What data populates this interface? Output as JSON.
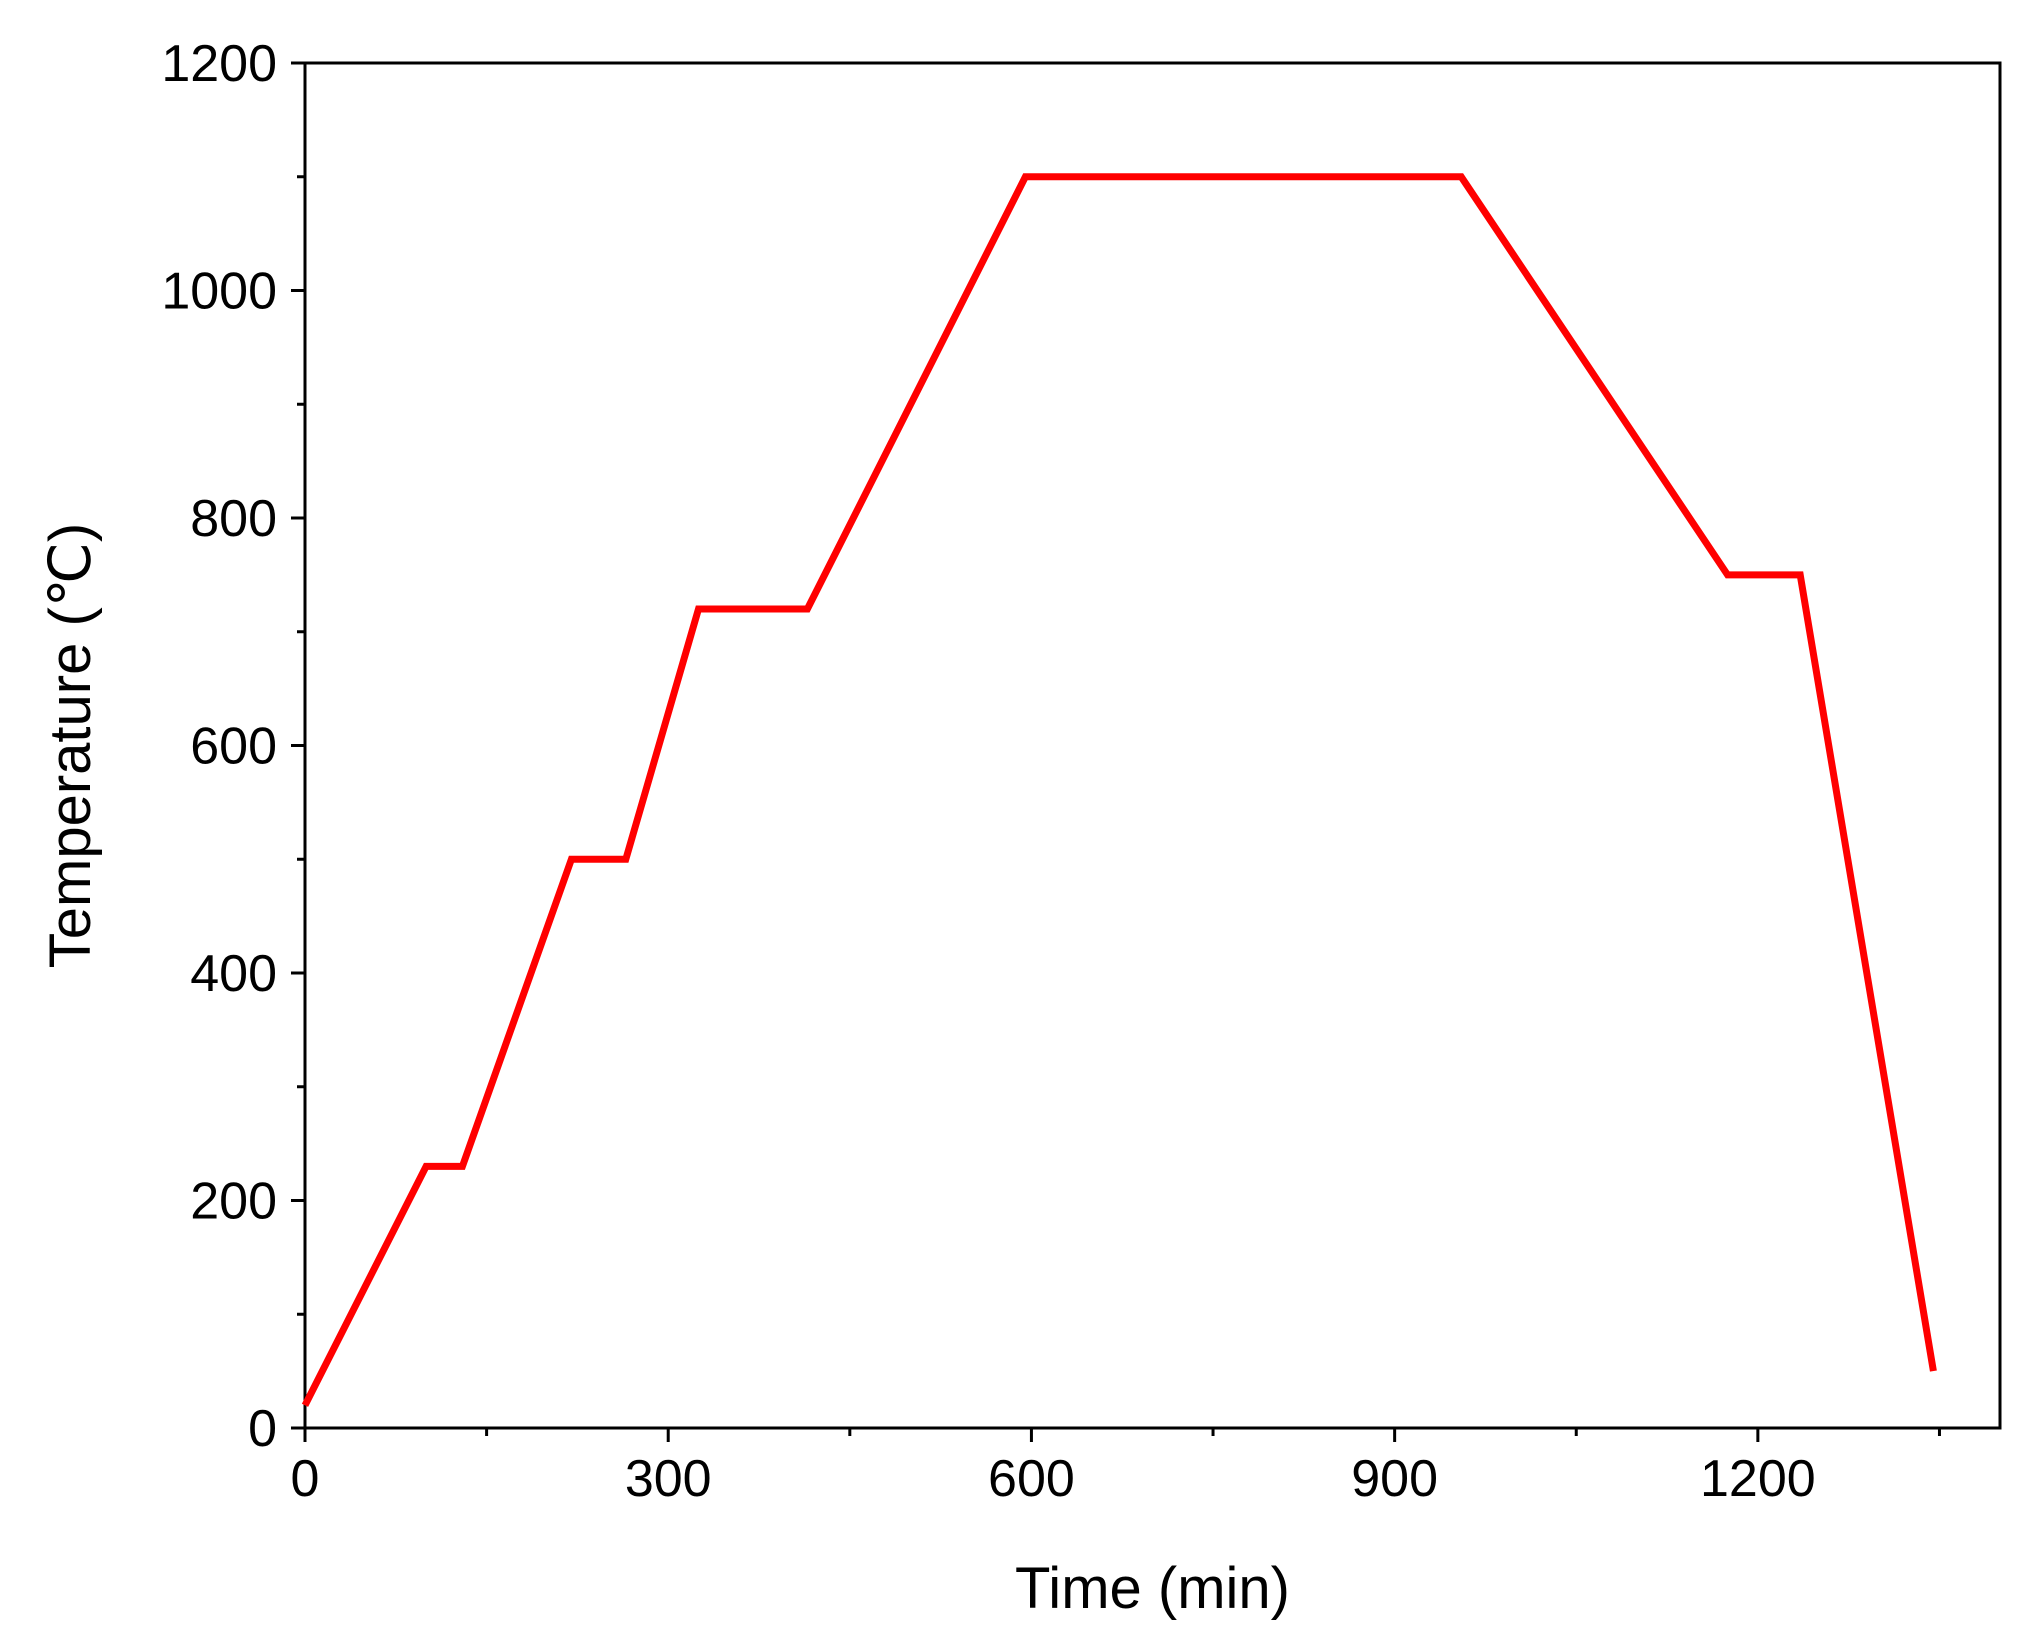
{
  "chart_data": {
    "type": "line",
    "xlabel": "Time (min)",
    "ylabel": "Temperature (℃)",
    "xlim": [
      0,
      1400
    ],
    "ylim": [
      0,
      1200
    ],
    "x_ticks": [
      0,
      300,
      600,
      900,
      1200
    ],
    "x_tick_labels": [
      "0",
      "300",
      "600",
      "900",
      "1200"
    ],
    "x_minor_ticks": [
      150,
      450,
      750,
      1050,
      1350
    ],
    "y_ticks": [
      0,
      200,
      400,
      600,
      800,
      1000,
      1200
    ],
    "y_tick_labels": [
      "0",
      "200",
      "400",
      "600",
      "800",
      "1000",
      "1200"
    ],
    "y_minor_ticks": [
      100,
      300,
      500,
      700,
      900,
      1100
    ],
    "grid": false,
    "legend": "none",
    "series": [
      {
        "color": "#ff0000",
        "x": [
          0,
          100,
          130,
          220,
          265,
          325,
          415,
          595,
          955,
          1175,
          1235,
          1345
        ],
        "y": [
          20,
          230,
          230,
          500,
          500,
          720,
          720,
          1100,
          1100,
          750,
          750,
          50
        ]
      }
    ]
  }
}
